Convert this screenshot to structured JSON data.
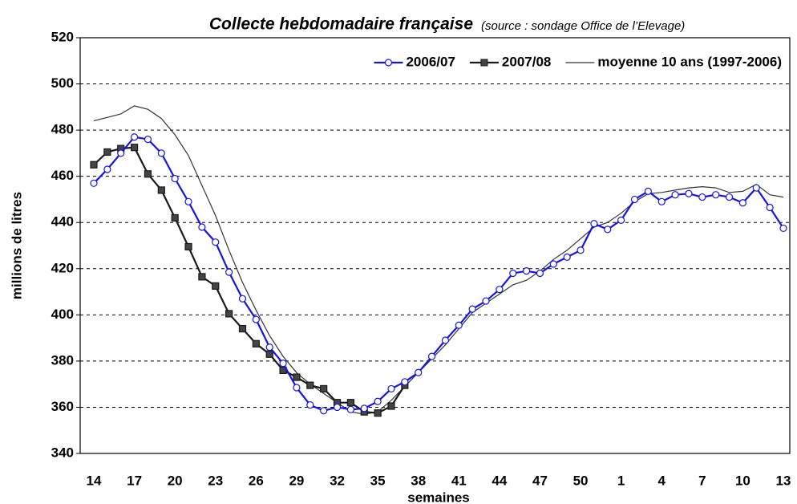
{
  "chart_data": {
    "type": "line",
    "title": "Collecte hebdomadaire française",
    "subtitle": "(source : sondage Office de l’Elevage)",
    "x_label": "semaines",
    "y_label": "millions de litres",
    "categories": [
      "14",
      null,
      null,
      "17",
      null,
      null,
      "20",
      null,
      null,
      "23",
      null,
      null,
      "26",
      null,
      null,
      "29",
      null,
      null,
      "32",
      null,
      null,
      "35",
      null,
      null,
      "38",
      null,
      null,
      "41",
      null,
      null,
      "44",
      null,
      null,
      "47",
      null,
      null,
      "50",
      null,
      null,
      "1",
      null,
      null,
      "4",
      null,
      null,
      "7",
      null,
      null,
      "10",
      null,
      null,
      "13"
    ],
    "ylim": [
      340,
      520
    ],
    "yticks": [
      340,
      360,
      380,
      400,
      420,
      440,
      460,
      480,
      500,
      520
    ],
    "grid": true,
    "legend": "upper right",
    "series": [
      {
        "name": "2006/07",
        "color": "#1414e6",
        "marker": "circle",
        "values": [
          457,
          463,
          470,
          477,
          476,
          470,
          459,
          449,
          438,
          431.5,
          418.5,
          407,
          398,
          386,
          379,
          368.5,
          361,
          358.5,
          360,
          359,
          359.5,
          362.5,
          368,
          371,
          375,
          382,
          389,
          395.5,
          402.5,
          406,
          411,
          418,
          419,
          418,
          422,
          425,
          428,
          439.5,
          437,
          441,
          450,
          453.5,
          449,
          452,
          452.5,
          451,
          452,
          451,
          448.5,
          455,
          446.5,
          437.5
        ]
      },
      {
        "name": "2007/08",
        "color": "#1a1a1a",
        "marker": "square",
        "values": [
          465,
          470.5,
          472,
          472.5,
          461,
          454,
          442,
          429.5,
          416.5,
          412.5,
          400.5,
          394,
          387.5,
          383,
          376,
          373,
          369.5,
          368,
          362,
          362,
          358,
          357.5,
          360.5,
          369.5,
          null,
          null,
          null,
          null,
          null,
          null,
          null,
          null,
          null,
          null,
          null,
          null,
          null,
          null,
          null,
          null,
          null,
          null,
          null,
          null,
          null,
          null,
          null,
          null,
          null,
          null,
          null,
          null
        ]
      },
      {
        "name": "moyenne 10 ans (1997-2006)",
        "color": "#333333",
        "marker": null,
        "values": [
          484,
          485.5,
          487,
          490.5,
          489,
          485,
          478,
          469,
          456,
          443,
          428,
          414,
          402,
          391,
          382,
          375,
          370,
          366,
          362,
          358,
          357,
          358,
          363,
          369,
          375,
          381,
          387,
          394,
          401,
          405,
          409,
          413,
          415,
          419,
          424,
          428,
          433,
          438,
          440,
          444,
          449,
          452.5,
          453,
          454,
          455,
          455.5,
          455,
          453,
          453.5,
          456.5,
          452,
          451
        ]
      }
    ]
  }
}
